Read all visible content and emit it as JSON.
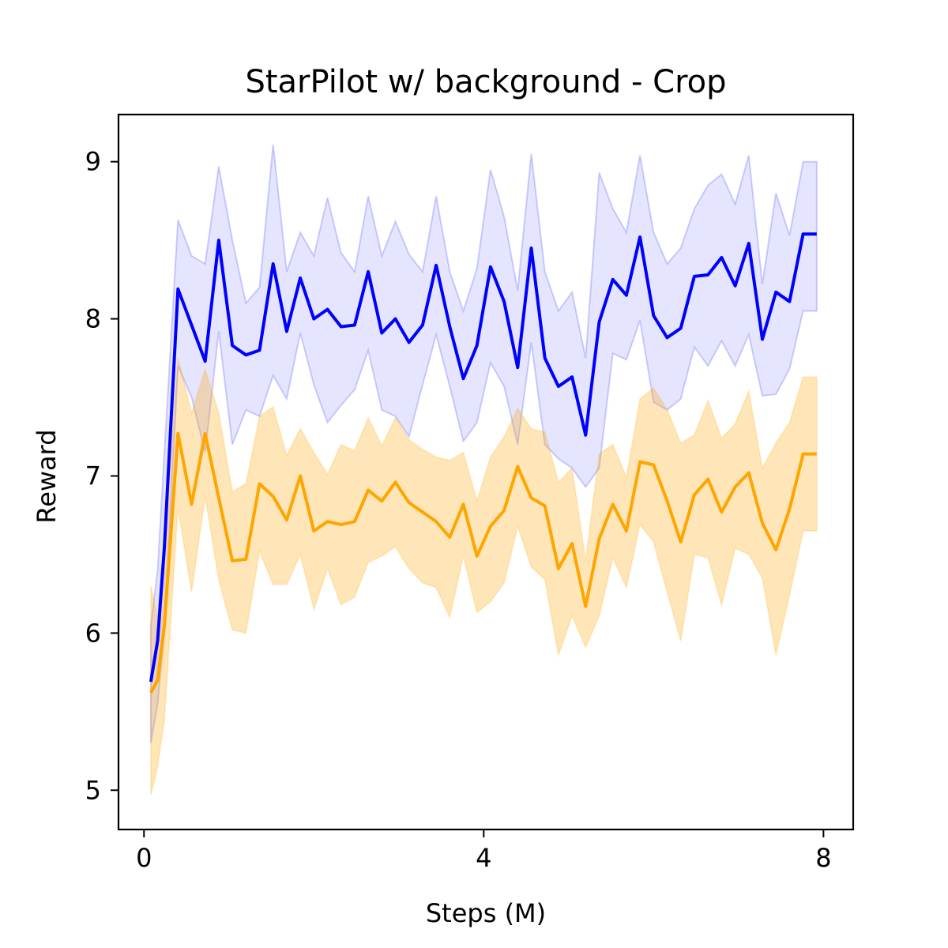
{
  "chart_data": {
    "type": "line",
    "title": "StarPilot w/ background - Crop",
    "xlabel": "Steps (M)",
    "ylabel": "Reward",
    "xlim": [
      -0.3,
      8.35
    ],
    "ylim": [
      4.75,
      9.3
    ],
    "xticks": [
      0,
      4,
      8
    ],
    "xtick_labels": [
      "0",
      "4",
      "8"
    ],
    "yticks": [
      5,
      6,
      7,
      8,
      9
    ],
    "ytick_labels": [
      "5",
      "6",
      "7",
      "8",
      "9"
    ],
    "grid": false,
    "legend": "none",
    "x": [
      0.08,
      0.16,
      0.24,
      0.4,
      0.56,
      0.72,
      0.88,
      1.04,
      1.2,
      1.36,
      1.52,
      1.68,
      1.84,
      2.0,
      2.16,
      2.32,
      2.48,
      2.64,
      2.8,
      2.96,
      3.12,
      3.28,
      3.44,
      3.6,
      3.76,
      3.92,
      4.08,
      4.24,
      4.4,
      4.56,
      4.72,
      4.88,
      5.04,
      5.2,
      5.36,
      5.52,
      5.68,
      5.84,
      6.0,
      6.16,
      6.32,
      6.48,
      6.64,
      6.8,
      6.96,
      7.12,
      7.28,
      7.44,
      7.6,
      7.76,
      7.92
    ],
    "series": [
      {
        "color": "#0000ff",
        "band_color": "#0000ff",
        "values": [
          5.69,
          5.95,
          6.55,
          8.19,
          7.96,
          7.73,
          8.5,
          7.83,
          7.77,
          7.8,
          8.35,
          7.92,
          8.26,
          8.0,
          8.06,
          7.95,
          7.96,
          8.3,
          7.91,
          8.0,
          7.85,
          7.96,
          8.34,
          7.95,
          7.62,
          7.83,
          8.33,
          8.11,
          7.69,
          8.45,
          7.75,
          7.57,
          7.63,
          7.26,
          7.98,
          8.25,
          8.15,
          8.52,
          8.02,
          7.88,
          7.94,
          8.27,
          8.28,
          8.39,
          8.21,
          8.48,
          7.87,
          8.17,
          8.11,
          8.54,
          8.54
        ],
        "upper": [
          6.05,
          6.4,
          7.15,
          8.63,
          8.4,
          8.35,
          8.97,
          8.5,
          8.1,
          8.2,
          9.11,
          8.3,
          8.55,
          8.4,
          8.77,
          8.42,
          8.3,
          8.78,
          8.4,
          8.62,
          8.41,
          8.3,
          8.78,
          8.3,
          8.05,
          8.32,
          8.95,
          8.65,
          8.18,
          9.05,
          8.3,
          8.05,
          8.17,
          7.75,
          8.93,
          8.7,
          8.55,
          9.04,
          8.55,
          8.35,
          8.45,
          8.7,
          8.85,
          8.92,
          8.73,
          9.04,
          8.22,
          8.8,
          8.53,
          9.0,
          9.0
        ],
        "lower": [
          5.3,
          5.55,
          6.0,
          7.7,
          7.5,
          7.15,
          7.92,
          7.2,
          7.42,
          7.38,
          7.64,
          7.49,
          7.91,
          7.58,
          7.34,
          7.45,
          7.55,
          7.8,
          7.42,
          7.38,
          7.25,
          7.58,
          7.9,
          7.57,
          7.22,
          7.34,
          7.72,
          7.57,
          7.2,
          7.85,
          7.2,
          7.11,
          7.05,
          6.93,
          7.05,
          7.78,
          7.74,
          7.99,
          7.47,
          7.42,
          7.49,
          7.82,
          7.7,
          7.86,
          7.7,
          7.9,
          7.51,
          7.52,
          7.68,
          8.05,
          8.05
        ]
      },
      {
        "color": "#ffa500",
        "band_color": "#ffa500",
        "values": [
          5.62,
          5.7,
          6.05,
          7.27,
          6.82,
          7.27,
          6.86,
          6.46,
          6.47,
          6.95,
          6.87,
          6.72,
          7.0,
          6.65,
          6.71,
          6.69,
          6.71,
          6.91,
          6.84,
          6.96,
          6.83,
          6.77,
          6.71,
          6.61,
          6.82,
          6.49,
          6.68,
          6.78,
          7.06,
          6.86,
          6.81,
          6.41,
          6.57,
          6.17,
          6.6,
          6.82,
          6.65,
          7.09,
          7.07,
          6.84,
          6.58,
          6.88,
          6.98,
          6.77,
          6.93,
          7.02,
          6.7,
          6.53,
          6.79,
          7.14,
          7.14
        ],
        "upper": [
          6.3,
          6.1,
          6.6,
          7.75,
          7.4,
          7.68,
          7.4,
          6.9,
          6.95,
          7.38,
          7.44,
          7.13,
          7.3,
          7.15,
          7.01,
          7.2,
          7.16,
          7.37,
          7.19,
          7.37,
          7.23,
          7.17,
          7.12,
          7.1,
          7.15,
          6.84,
          7.12,
          7.25,
          7.43,
          7.3,
          7.28,
          6.96,
          7.05,
          6.46,
          7.14,
          7.2,
          6.99,
          7.49,
          7.56,
          7.42,
          7.21,
          7.26,
          7.48,
          7.24,
          7.33,
          7.54,
          7.05,
          7.21,
          7.34,
          7.63,
          7.63
        ],
        "lower": [
          4.97,
          5.15,
          5.45,
          6.8,
          6.26,
          6.87,
          6.34,
          6.02,
          6.0,
          6.52,
          6.31,
          6.31,
          6.5,
          6.15,
          6.41,
          6.18,
          6.23,
          6.45,
          6.49,
          6.55,
          6.41,
          6.32,
          6.29,
          6.1,
          6.49,
          6.13,
          6.2,
          6.32,
          6.68,
          6.42,
          6.34,
          5.86,
          6.11,
          5.91,
          6.11,
          6.48,
          6.29,
          6.69,
          6.58,
          6.26,
          5.95,
          6.5,
          6.48,
          6.18,
          6.54,
          6.5,
          6.35,
          5.86,
          6.24,
          6.65,
          6.65
        ]
      }
    ]
  }
}
